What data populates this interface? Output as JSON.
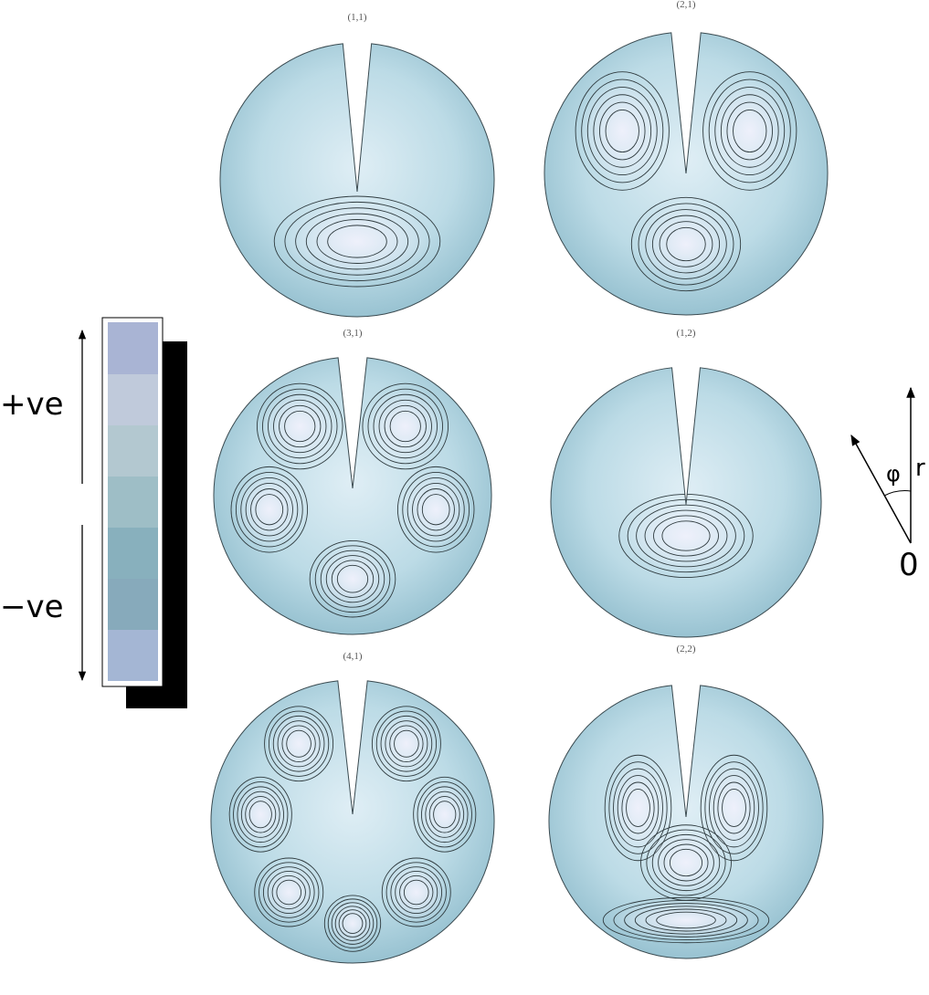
{
  "panels": [
    {
      "label": "(1,1)"
    },
    {
      "label": "(2,1)"
    },
    {
      "label": "(3,1)"
    },
    {
      "label": "(1,2)"
    },
    {
      "label": "(4,1)"
    },
    {
      "label": "(2,2)"
    }
  ],
  "legend": {
    "positive": "+ve",
    "negative": "−ve"
  },
  "axes": {
    "angle": "φ",
    "radius": "r",
    "origin": "0"
  }
}
